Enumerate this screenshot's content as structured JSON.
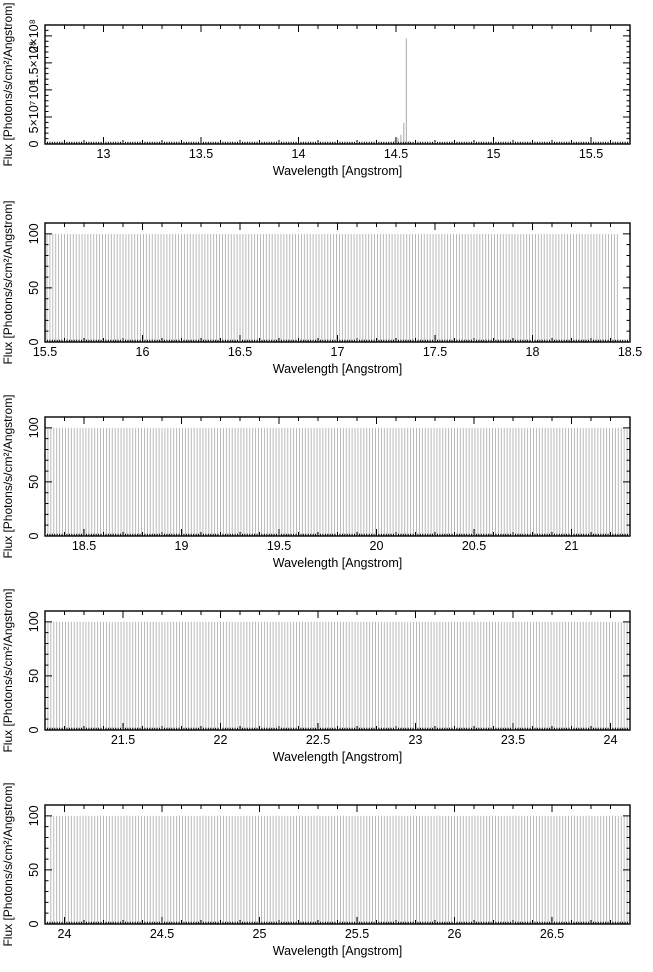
{
  "page": {
    "background": "#ffffff",
    "description": "Five vertically stacked spectral flux panels covering consecutive overlapping wavelength ranges"
  },
  "chart_data": {
    "type": "line",
    "subtype": "emission-line-comb-spectrum",
    "xlabel": "Wavelength [Angstrom]",
    "ylabel": "Flux [Photons/s/cm²/Angstrom]",
    "grid": false,
    "legend": "none",
    "colors": {
      "axis": "#000000",
      "comb_line": "#b2b2b2",
      "emission_line": "#a8a8a8",
      "text": "#000000"
    },
    "panels": [
      {
        "name": "panel-1",
        "xlim": [
          12.7,
          15.7
        ],
        "ylim": [
          0,
          220000000.0
        ],
        "xticks": [
          13,
          13.5,
          14,
          14.5,
          15,
          15.5
        ],
        "ytick_values": [
          0,
          50000000.0,
          100000000.0,
          150000000.0,
          200000000.0
        ],
        "ytick_labels": [
          "0",
          "5×10⁷",
          "10⁸",
          "1.5×10⁸",
          "2×10⁸"
        ],
        "y_minor_step": 10000000.0,
        "comb": null,
        "emission_lines": [
          {
            "x": 14.475,
            "y": 4000000.0
          },
          {
            "x": 14.495,
            "y": 7000000.0
          },
          {
            "x": 14.51,
            "y": 11000000.0
          },
          {
            "x": 14.525,
            "y": 17000000.0
          },
          {
            "x": 14.54,
            "y": 39000000.0
          },
          {
            "x": 14.553,
            "y": 195000000.0
          },
          {
            "x": 14.567,
            "y": 5000000.0
          }
        ]
      },
      {
        "name": "panel-2",
        "xlim": [
          15.5,
          18.5
        ],
        "ylim": [
          0,
          110
        ],
        "xticks": [
          15.5,
          16,
          16.5,
          17,
          17.5,
          18,
          18.5
        ],
        "ytick_values": [
          0,
          50,
          100
        ],
        "ytick_labels": [
          "0",
          "50",
          "100"
        ],
        "y_minor_step": 10,
        "comb": {
          "start": 15.51,
          "end": 18.44,
          "spacing": 0.015,
          "height": 100
        },
        "emission_lines": []
      },
      {
        "name": "panel-3",
        "xlim": [
          18.3,
          21.3
        ],
        "ylim": [
          0,
          110
        ],
        "xticks": [
          18.5,
          19,
          19.5,
          20,
          20.5,
          21
        ],
        "ytick_values": [
          0,
          50,
          100
        ],
        "ytick_labels": [
          "0",
          "50",
          "100"
        ],
        "y_minor_step": 10,
        "comb": {
          "start": 18.315,
          "end": 21.285,
          "spacing": 0.015,
          "height": 100
        },
        "emission_lines": []
      },
      {
        "name": "panel-4",
        "xlim": [
          21.1,
          24.1
        ],
        "ylim": [
          0,
          110
        ],
        "xticks": [
          21.5,
          22,
          22.5,
          23,
          23.5,
          24
        ],
        "ytick_values": [
          0,
          50,
          100
        ],
        "ytick_labels": [
          "0",
          "50",
          "100"
        ],
        "y_minor_step": 10,
        "comb": {
          "start": 21.115,
          "end": 24.085,
          "spacing": 0.015,
          "height": 100
        },
        "emission_lines": []
      },
      {
        "name": "panel-5",
        "xlim": [
          23.9,
          26.9
        ],
        "ylim": [
          0,
          110
        ],
        "xticks": [
          24,
          24.5,
          25,
          25.5,
          26,
          26.5
        ],
        "ytick_values": [
          0,
          50,
          100
        ],
        "ytick_labels": [
          "0",
          "50",
          "100"
        ],
        "y_minor_step": 10,
        "comb": {
          "start": 23.93,
          "end": 26.885,
          "spacing": 0.015,
          "height": 100
        },
        "emission_lines": []
      }
    ]
  }
}
